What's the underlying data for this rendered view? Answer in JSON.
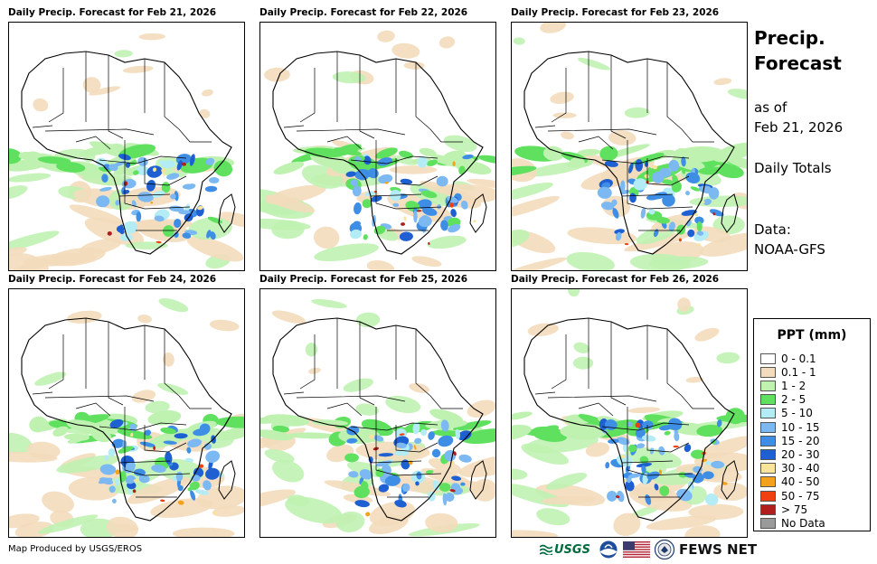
{
  "panels": [
    {
      "title": "Daily Precip. Forecast for Feb 21, 2026"
    },
    {
      "title": "Daily Precip. Forecast for Feb 22, 2026"
    },
    {
      "title": "Daily Precip. Forecast for Feb 23, 2026"
    },
    {
      "title": "Daily Precip. Forecast for Feb 24, 2026"
    },
    {
      "title": "Daily Precip. Forecast for Feb 25, 2026"
    },
    {
      "title": "Daily Precip. Forecast for Feb 26, 2026"
    }
  ],
  "side": {
    "title_line1": "Precip.",
    "title_line2": "Forecast",
    "asof_line1": "as of",
    "asof_line2": "Feb 21, 2026",
    "totals": "Daily Totals",
    "data_line1": "Data:",
    "data_line2": "NOAA-GFS"
  },
  "legend": {
    "title": "PPT (mm)",
    "items": [
      {
        "label": "0 - 0.1",
        "color": "#ffffff"
      },
      {
        "label": "0.1 - 1",
        "color": "#f3dcbb"
      },
      {
        "label": "1 - 2",
        "color": "#bff2b1"
      },
      {
        "label": "2 - 5",
        "color": "#5fe05f"
      },
      {
        "label": "5 - 10",
        "color": "#b4ecf6"
      },
      {
        "label": "10 - 15",
        "color": "#7cb8f2"
      },
      {
        "label": "15 - 20",
        "color": "#3f8ee6"
      },
      {
        "label": "20 - 30",
        "color": "#1e5fd2"
      },
      {
        "label": "30 - 40",
        "color": "#fae39a"
      },
      {
        "label": "40 - 50",
        "color": "#f4a21c"
      },
      {
        "label": "50 - 75",
        "color": "#f04010"
      },
      {
        "label": "> 75",
        "color": "#b01e1e"
      },
      {
        "label": "No Data",
        "color": "#9a9a9a"
      }
    ]
  },
  "footer": {
    "credit": "Map Produced by USGS/EROS",
    "usgs": "USGS",
    "fews": "FEWS NET"
  }
}
